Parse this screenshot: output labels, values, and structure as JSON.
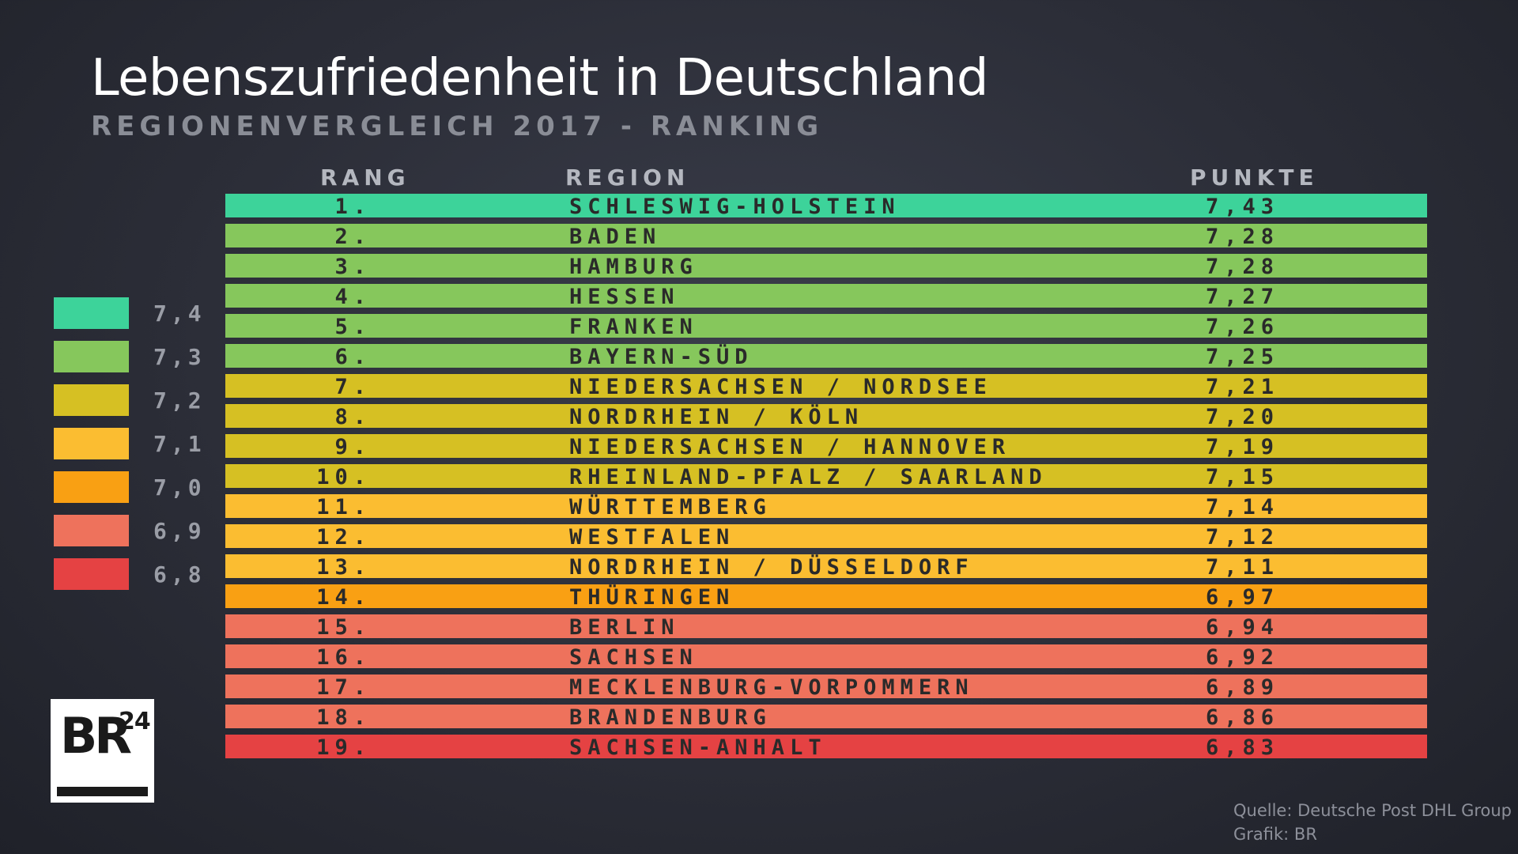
{
  "header": {
    "title": "Lebenszufriedenheit in Deutschland",
    "subtitle": "REGIONENVERGLEICH 2017 - RANKING"
  },
  "columns": {
    "rank": "RANG",
    "region": "REGION",
    "points": "PUNKTE"
  },
  "chart_data": {
    "type": "table",
    "title": "Lebenszufriedenheit in Deutschland",
    "subtitle": "REGIONENVERGLEICH 2017 - RANKING",
    "columns": [
      "RANG",
      "REGION",
      "PUNKTE"
    ],
    "rows": [
      {
        "rank": "1.",
        "region": "SCHLESWIG-HOLSTEIN",
        "points": "7,43",
        "value": 7.43,
        "color": "#3dd39a"
      },
      {
        "rank": "2.",
        "region": "BADEN",
        "points": "7,28",
        "value": 7.28,
        "color": "#86c75c"
      },
      {
        "rank": "3.",
        "region": "HAMBURG",
        "points": "7,28",
        "value": 7.28,
        "color": "#86c75c"
      },
      {
        "rank": "4.",
        "region": "HESSEN",
        "points": "7,27",
        "value": 7.27,
        "color": "#86c75c"
      },
      {
        "rank": "5.",
        "region": "FRANKEN",
        "points": "7,26",
        "value": 7.26,
        "color": "#86c75c"
      },
      {
        "rank": "6.",
        "region": "BAYERN-SÜD",
        "points": "7,25",
        "value": 7.25,
        "color": "#86c75c"
      },
      {
        "rank": "7.",
        "region": "NIEDERSACHSEN / NORDSEE",
        "points": "7,21",
        "value": 7.21,
        "color": "#d6c023"
      },
      {
        "rank": "8.",
        "region": "NORDRHEIN / KÖLN",
        "points": "7,20",
        "value": 7.2,
        "color": "#d6c023"
      },
      {
        "rank": "9.",
        "region": "NIEDERSACHSEN / HANNOVER",
        "points": "7,19",
        "value": 7.19,
        "color": "#d6c023"
      },
      {
        "rank": "10.",
        "region": "RHEINLAND-PFALZ / SAARLAND",
        "points": "7,15",
        "value": 7.15,
        "color": "#d6c023"
      },
      {
        "rank": "11.",
        "region": "WÜRTTEMBERG",
        "points": "7,14",
        "value": 7.14,
        "color": "#fbbd31"
      },
      {
        "rank": "12.",
        "region": "WESTFALEN",
        "points": "7,12",
        "value": 7.12,
        "color": "#fbbd31"
      },
      {
        "rank": "13.",
        "region": "NORDRHEIN / DÜSSELDORF",
        "points": "7,11",
        "value": 7.11,
        "color": "#fbbd31"
      },
      {
        "rank": "14.",
        "region": "THÜRINGEN",
        "points": "6,97",
        "value": 6.97,
        "color": "#f9a013"
      },
      {
        "rank": "15.",
        "region": "BERLIN",
        "points": "6,94",
        "value": 6.94,
        "color": "#ee725c"
      },
      {
        "rank": "16.",
        "region": "SACHSEN",
        "points": "6,92",
        "value": 6.92,
        "color": "#ee725c"
      },
      {
        "rank": "17.",
        "region": "MECKLENBURG-VORPOMMERN",
        "points": "6,89",
        "value": 6.89,
        "color": "#ee725c"
      },
      {
        "rank": "18.",
        "region": "BRANDENBURG",
        "points": "6,86",
        "value": 6.86,
        "color": "#ee725c"
      },
      {
        "rank": "19.",
        "region": "SACHSEN-ANHALT",
        "points": "6,83",
        "value": 6.83,
        "color": "#e54243"
      }
    ],
    "legend": [
      {
        "label": "7,4",
        "color": "#3dd39a"
      },
      {
        "label": "7,3",
        "color": "#86c75c"
      },
      {
        "label": "7,2",
        "color": "#d6c023"
      },
      {
        "label": "7,1",
        "color": "#fbbd31"
      },
      {
        "label": "7,0",
        "color": "#f9a013"
      },
      {
        "label": "6,9",
        "color": "#ee725c"
      },
      {
        "label": "6,8",
        "color": "#e54243"
      }
    ],
    "legend_placement": "left"
  },
  "logo": {
    "text": "BR",
    "sup": "24"
  },
  "source": {
    "line1": "Quelle: Deutsche Post DHL Group |",
    "line2": "Grafik: BR"
  }
}
